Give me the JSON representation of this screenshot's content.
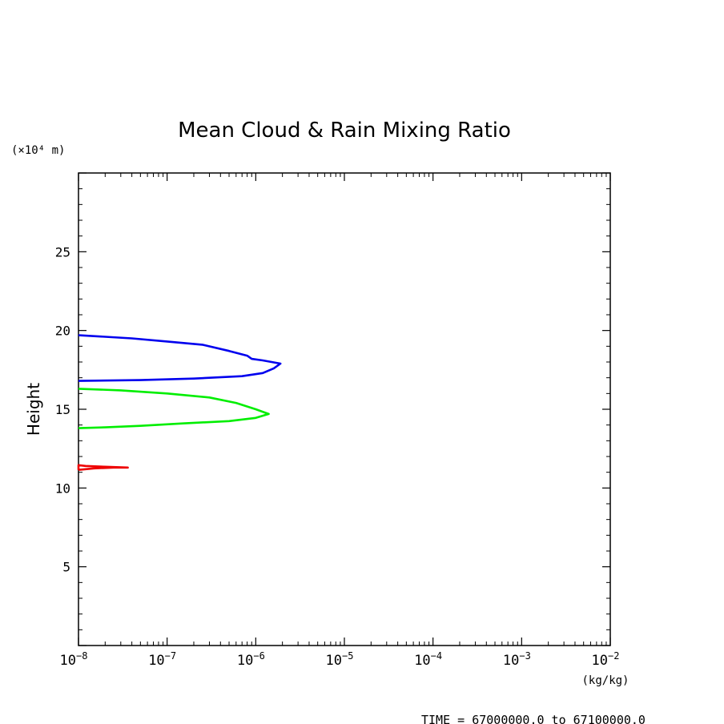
{
  "chart_data": {
    "type": "line",
    "title": "Mean Cloud & Rain Mixing Ratio",
    "ylabel": "Height",
    "yunit": "(×10⁴ m)",
    "xunit": "(kg/kg)",
    "footer": "TIME = 67000000.0 to 67100000.0",
    "xscale": "log",
    "xlim": [
      1e-08,
      0.01
    ],
    "ylim": [
      0,
      30
    ],
    "xticks": [
      {
        "value": 1e-08,
        "base": "10",
        "exp": "−8"
      },
      {
        "value": 1e-07,
        "base": "10",
        "exp": "−7"
      },
      {
        "value": 1e-06,
        "base": "10",
        "exp": "−6"
      },
      {
        "value": 1e-05,
        "base": "10",
        "exp": "−5"
      },
      {
        "value": 0.0001,
        "base": "10",
        "exp": "−4"
      },
      {
        "value": 0.001,
        "base": "10",
        "exp": "−3"
      },
      {
        "value": 0.01,
        "base": "10",
        "exp": "−2"
      }
    ],
    "yticks": [
      {
        "value": 5,
        "label": "5"
      },
      {
        "value": 10,
        "label": "10"
      },
      {
        "value": 15,
        "label": "15"
      },
      {
        "value": 20,
        "label": "20"
      },
      {
        "value": 25,
        "label": "25"
      }
    ],
    "grid": false,
    "series": [
      {
        "color": "#0000ee",
        "points": [
          [
            1e-08,
            19.7
          ],
          [
            2e-08,
            19.6
          ],
          [
            4e-08,
            19.5
          ],
          [
            1e-07,
            19.3
          ],
          [
            2.5e-07,
            19.1
          ],
          [
            5e-07,
            18.7
          ],
          [
            8e-07,
            18.4
          ],
          [
            9e-07,
            18.2
          ],
          [
            1.2e-06,
            18.1
          ],
          [
            1.9e-06,
            17.9
          ],
          [
            1.6e-06,
            17.6
          ],
          [
            1.2e-06,
            17.3
          ],
          [
            7e-07,
            17.1
          ],
          [
            2e-07,
            16.95
          ],
          [
            5e-08,
            16.85
          ],
          [
            1e-08,
            16.8
          ]
        ]
      },
      {
        "color": "#00ee00",
        "points": [
          [
            1e-08,
            16.3
          ],
          [
            3e-08,
            16.2
          ],
          [
            1e-07,
            16.0
          ],
          [
            3e-07,
            15.75
          ],
          [
            6e-07,
            15.4
          ],
          [
            1e-06,
            15.0
          ],
          [
            1.4e-06,
            14.7
          ],
          [
            1e-06,
            14.45
          ],
          [
            5e-07,
            14.25
          ],
          [
            1.5e-07,
            14.1
          ],
          [
            5e-08,
            13.95
          ],
          [
            2e-08,
            13.85
          ],
          [
            1e-08,
            13.8
          ]
        ]
      },
      {
        "color": "#ee0000",
        "points": [
          [
            1e-08,
            11.15
          ],
          [
            1.5e-08,
            11.25
          ],
          [
            2.5e-08,
            11.3
          ],
          [
            3.6e-08,
            11.3
          ],
          [
            2e-08,
            11.35
          ],
          [
            1.2e-08,
            11.4
          ],
          [
            1e-08,
            11.45
          ],
          [
            1e-08,
            11.15
          ]
        ]
      }
    ]
  }
}
